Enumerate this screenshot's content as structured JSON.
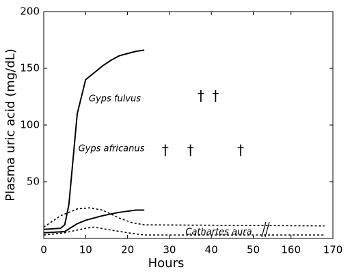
{
  "chart_data": {
    "type": "line",
    "x_label": "Hours",
    "y_label": "Plasma uric acid (mg/dL)",
    "xlim": [
      [
        0,
        53
      ],
      [
        154,
        170
      ]
    ],
    "xticks": [
      0,
      10,
      20,
      30,
      40,
      50,
      160,
      170
    ],
    "ylim": [
      0,
      200
    ],
    "yticks": [
      50,
      100,
      150,
      200
    ],
    "annotations": [
      "Gyps fulvus",
      "Gyps africanus",
      "Cathartes aura"
    ],
    "series": [
      {
        "color": "#000000",
        "style": "solid",
        "x": [
          0,
          4,
          5,
          6,
          7,
          8,
          10,
          12,
          14,
          16,
          18,
          20,
          22,
          24
        ],
        "values": [
          8,
          9,
          12,
          30,
          70,
          110,
          140,
          146,
          152,
          157,
          161,
          163,
          165,
          166
        ]
      },
      {
        "color": "#000000",
        "style": "solid",
        "x": [
          0,
          5,
          8,
          10,
          14,
          18,
          22,
          24
        ],
        "values": [
          5,
          6,
          13,
          16,
          20,
          23,
          25,
          25
        ]
      },
      {
        "color": "#000000",
        "style": "dotted",
        "x": [
          0,
          4,
          8,
          11,
          14,
          18,
          21,
          24,
          168
        ],
        "values": [
          10,
          20,
          26,
          27,
          25,
          18,
          14,
          12,
          11
        ]
      },
      {
        "color": "#000000",
        "style": "dotted",
        "x": [
          0,
          5,
          10,
          12,
          15,
          20,
          24,
          168
        ],
        "values": [
          3,
          5,
          9,
          10,
          8,
          5,
          3,
          3
        ]
      }
    ],
    "deaths": {
      "marker": "†",
      "x": [
        37.5,
        41,
        29,
        35,
        47
      ],
      "values": [
        125,
        125,
        77,
        77,
        77
      ]
    }
  }
}
